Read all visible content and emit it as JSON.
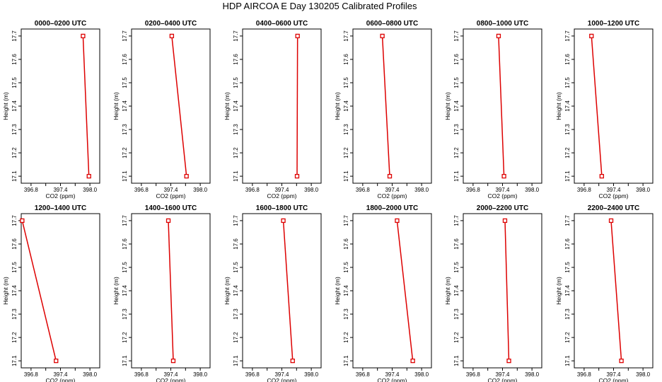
{
  "chart_data": {
    "type": "line",
    "title": "HDP AIRCOA E  Day 130205  Calibrated Profiles",
    "xlabel": "CO2 (ppm)",
    "ylabel": "Height (m)",
    "xlim": [
      396.6,
      398.2
    ],
    "ylim": [
      17.07,
      17.73
    ],
    "xticks": [
      396.8,
      397.4,
      398.0
    ],
    "xtick_labels": [
      "396.8",
      "397.4",
      "398.0"
    ],
    "yticks": [
      17.1,
      17.2,
      17.3,
      17.4,
      17.5,
      17.6,
      17.7
    ],
    "ytick_labels": [
      "17.1",
      "17.2",
      "17.3",
      "17.4",
      "17.5",
      "17.6",
      "17.7"
    ],
    "series_color": "#dd0000",
    "panels": [
      {
        "title": "0000–0200 UTC",
        "points": [
          {
            "height": 17.7,
            "co2": 397.86
          },
          {
            "height": 17.1,
            "co2": 397.98
          }
        ]
      },
      {
        "title": "0200–0400 UTC",
        "points": [
          {
            "height": 17.7,
            "co2": 397.42
          },
          {
            "height": 17.1,
            "co2": 397.72
          }
        ]
      },
      {
        "title": "0400–0600 UTC",
        "points": [
          {
            "height": 17.7,
            "co2": 397.72
          },
          {
            "height": 17.1,
            "co2": 397.71
          }
        ]
      },
      {
        "title": "0600–0800 UTC",
        "points": [
          {
            "height": 17.7,
            "co2": 397.2
          },
          {
            "height": 17.1,
            "co2": 397.35
          }
        ]
      },
      {
        "title": "0800–1000 UTC",
        "points": [
          {
            "height": 17.7,
            "co2": 397.32
          },
          {
            "height": 17.1,
            "co2": 397.43
          }
        ]
      },
      {
        "title": "1000–1200 UTC",
        "points": [
          {
            "height": 17.7,
            "co2": 396.95
          },
          {
            "height": 17.1,
            "co2": 397.16
          }
        ]
      },
      {
        "title": "1200–1400 UTC",
        "points": [
          {
            "height": 17.7,
            "co2": 396.62
          },
          {
            "height": 17.1,
            "co2": 397.31
          }
        ]
      },
      {
        "title": "1400–1600 UTC",
        "points": [
          {
            "height": 17.7,
            "co2": 397.35
          },
          {
            "height": 17.1,
            "co2": 397.45
          }
        ]
      },
      {
        "title": "1600–1800 UTC",
        "points": [
          {
            "height": 17.7,
            "co2": 397.43
          },
          {
            "height": 17.1,
            "co2": 397.62
          }
        ]
      },
      {
        "title": "1800–2000 UTC",
        "points": [
          {
            "height": 17.7,
            "co2": 397.5
          },
          {
            "height": 17.1,
            "co2": 397.82
          }
        ]
      },
      {
        "title": "2000–2200 UTC",
        "points": [
          {
            "height": 17.7,
            "co2": 397.45
          },
          {
            "height": 17.1,
            "co2": 397.53
          }
        ]
      },
      {
        "title": "2200–2400 UTC",
        "points": [
          {
            "height": 17.7,
            "co2": 397.35
          },
          {
            "height": 17.1,
            "co2": 397.56
          }
        ]
      }
    ]
  }
}
